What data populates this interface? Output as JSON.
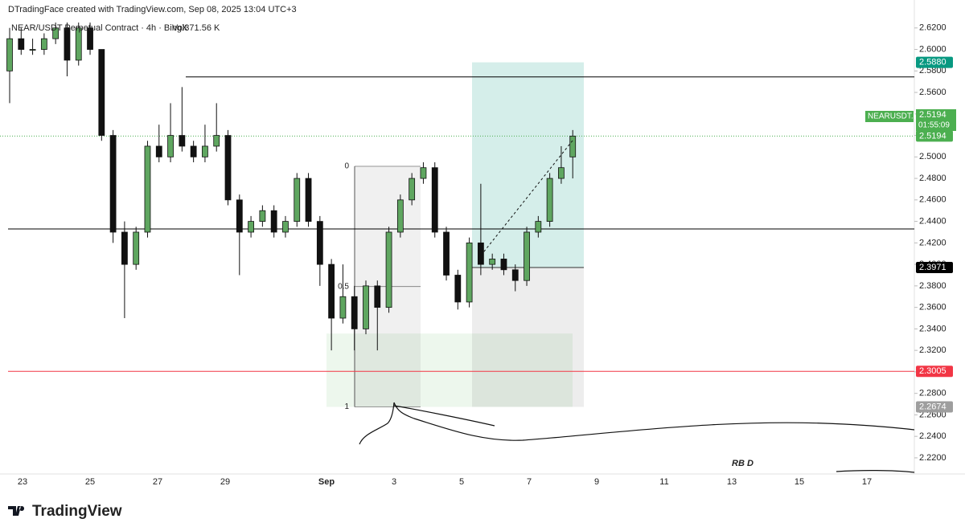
{
  "header": {
    "credit": "DTradingFace created with TradingView.com, Sep 08, 2025 13:04 UTC+3"
  },
  "chart_data": {
    "type": "candlestick",
    "title": "NEAR/USDT Perpetual Contract · 4h · BingX",
    "volume": "Vol371.56 K",
    "x_labels": [
      "23",
      "25",
      "27",
      "29",
      "Sep",
      "3",
      "5",
      "7",
      "9",
      "11",
      "13",
      "15",
      "17"
    ],
    "open": [
      2.58,
      2.61,
      2.6,
      2.6,
      2.61,
      2.62,
      2.59,
      2.62,
      2.6,
      2.52,
      2.43,
      2.4,
      2.43,
      2.51,
      2.5,
      2.52,
      2.51,
      2.5,
      2.51,
      2.52,
      2.46,
      2.43,
      2.44,
      2.45,
      2.43,
      2.44,
      2.48,
      2.44,
      2.4,
      2.35,
      2.37,
      2.34,
      2.38,
      2.36,
      2.43,
      2.46,
      2.48,
      2.49,
      2.43,
      2.39,
      2.365,
      2.42,
      2.4,
      2.405,
      2.395,
      2.385,
      2.43,
      2.44,
      2.48,
      2.5
    ],
    "high": [
      2.62,
      2.62,
      2.61,
      2.615,
      2.625,
      2.625,
      2.625,
      2.625,
      2.6,
      2.525,
      2.44,
      2.435,
      2.515,
      2.53,
      2.55,
      2.565,
      2.515,
      2.53,
      2.55,
      2.525,
      2.465,
      2.445,
      2.455,
      2.455,
      2.445,
      2.485,
      2.485,
      2.445,
      2.405,
      2.4,
      2.38,
      2.385,
      2.385,
      2.435,
      2.465,
      2.485,
      2.495,
      2.495,
      2.435,
      2.395,
      2.425,
      2.475,
      2.41,
      2.41,
      2.4,
      2.435,
      2.445,
      2.485,
      2.51,
      2.525
    ],
    "low": [
      2.55,
      2.595,
      2.595,
      2.595,
      2.605,
      2.575,
      2.585,
      2.595,
      2.515,
      2.42,
      2.35,
      2.395,
      2.425,
      2.495,
      2.495,
      2.505,
      2.495,
      2.495,
      2.505,
      2.455,
      2.39,
      2.425,
      2.435,
      2.425,
      2.425,
      2.435,
      2.435,
      2.38,
      2.32,
      2.345,
      2.32,
      2.335,
      2.32,
      2.355,
      2.425,
      2.455,
      2.475,
      2.425,
      2.385,
      2.358,
      2.36,
      2.39,
      2.395,
      2.39,
      2.375,
      2.38,
      2.425,
      2.435,
      2.475,
      2.48
    ],
    "close": [
      2.61,
      2.6,
      2.6,
      2.61,
      2.62,
      2.59,
      2.62,
      2.6,
      2.52,
      2.43,
      2.4,
      2.43,
      2.51,
      2.5,
      2.52,
      2.51,
      2.5,
      2.51,
      2.52,
      2.46,
      2.43,
      2.44,
      2.45,
      2.43,
      2.44,
      2.48,
      2.44,
      2.4,
      2.35,
      2.37,
      2.34,
      2.38,
      2.36,
      2.43,
      2.46,
      2.48,
      2.49,
      2.43,
      2.39,
      2.365,
      2.42,
      2.4,
      2.405,
      2.395,
      2.385,
      2.43,
      2.44,
      2.48,
      2.49,
      2.5194
    ],
    "up_color": "#5fa660",
    "down_color": "#111111",
    "ylim": [
      2.205,
      2.646
    ],
    "yticks": [
      {
        "value": 2.62,
        "label": "2.6200"
      },
      {
        "value": 2.6,
        "label": "2.6000"
      },
      {
        "value": 2.58,
        "label": "2.5800"
      },
      {
        "value": 2.56,
        "label": "2.5600"
      },
      {
        "value": 2.54,
        "label": "2.5400"
      },
      {
        "value": 2.52,
        "label": "2.5200"
      },
      {
        "value": 2.5,
        "label": "2.5000"
      },
      {
        "value": 2.48,
        "label": "2.4800"
      },
      {
        "value": 2.46,
        "label": "2.4600"
      },
      {
        "value": 2.44,
        "label": "2.4400"
      },
      {
        "value": 2.42,
        "label": "2.4200"
      },
      {
        "value": 2.4,
        "label": "2.4000"
      },
      {
        "value": 2.38,
        "label": "2.3800"
      },
      {
        "value": 2.36,
        "label": "2.3600"
      },
      {
        "value": 2.34,
        "label": "2.3400"
      },
      {
        "value": 2.32,
        "label": "2.3200"
      },
      {
        "value": 2.3,
        "label": "2.3000"
      },
      {
        "value": 2.28,
        "label": "2.2800"
      },
      {
        "value": 2.26,
        "label": "2.2600"
      },
      {
        "value": 2.24,
        "label": "2.2400"
      },
      {
        "value": 2.22,
        "label": "2.2200"
      }
    ],
    "price_labels": [
      {
        "value": 2.588,
        "label": "2.5880",
        "color": "#089981"
      },
      {
        "value": 2.5194,
        "label": "2.5194",
        "color": "#4caf50"
      },
      {
        "value": 2.3971,
        "label": "2.3971",
        "color": "#000000"
      },
      {
        "value": 2.3005,
        "label": "2.3005",
        "color": "#f23645"
      },
      {
        "value": 2.2674,
        "label": "2.2674",
        "color": "#9e9e9e"
      }
    ],
    "symbol_badge": {
      "name": "NEARUSDT.P",
      "countdown": "01:55:09",
      "color": "#4caf50"
    },
    "lines": [
      {
        "value": 2.5744,
        "color": "#000000"
      },
      {
        "value": 2.433,
        "color": "#000000"
      },
      {
        "value": 2.3005,
        "color": "#f23645"
      }
    ],
    "position": {
      "target": 2.588,
      "entry": 2.3971,
      "stop": 2.2674
    },
    "fib": [
      {
        "value": 2.4913,
        "label": "0"
      },
      {
        "value": 2.3794,
        "label": "0.5"
      },
      {
        "value": 2.2674,
        "label": "1"
      }
    ],
    "zone": {
      "top": 2.3357,
      "bottom": 2.2674
    },
    "annotation": "RB D"
  },
  "footer": {
    "logo": "TradingView"
  }
}
